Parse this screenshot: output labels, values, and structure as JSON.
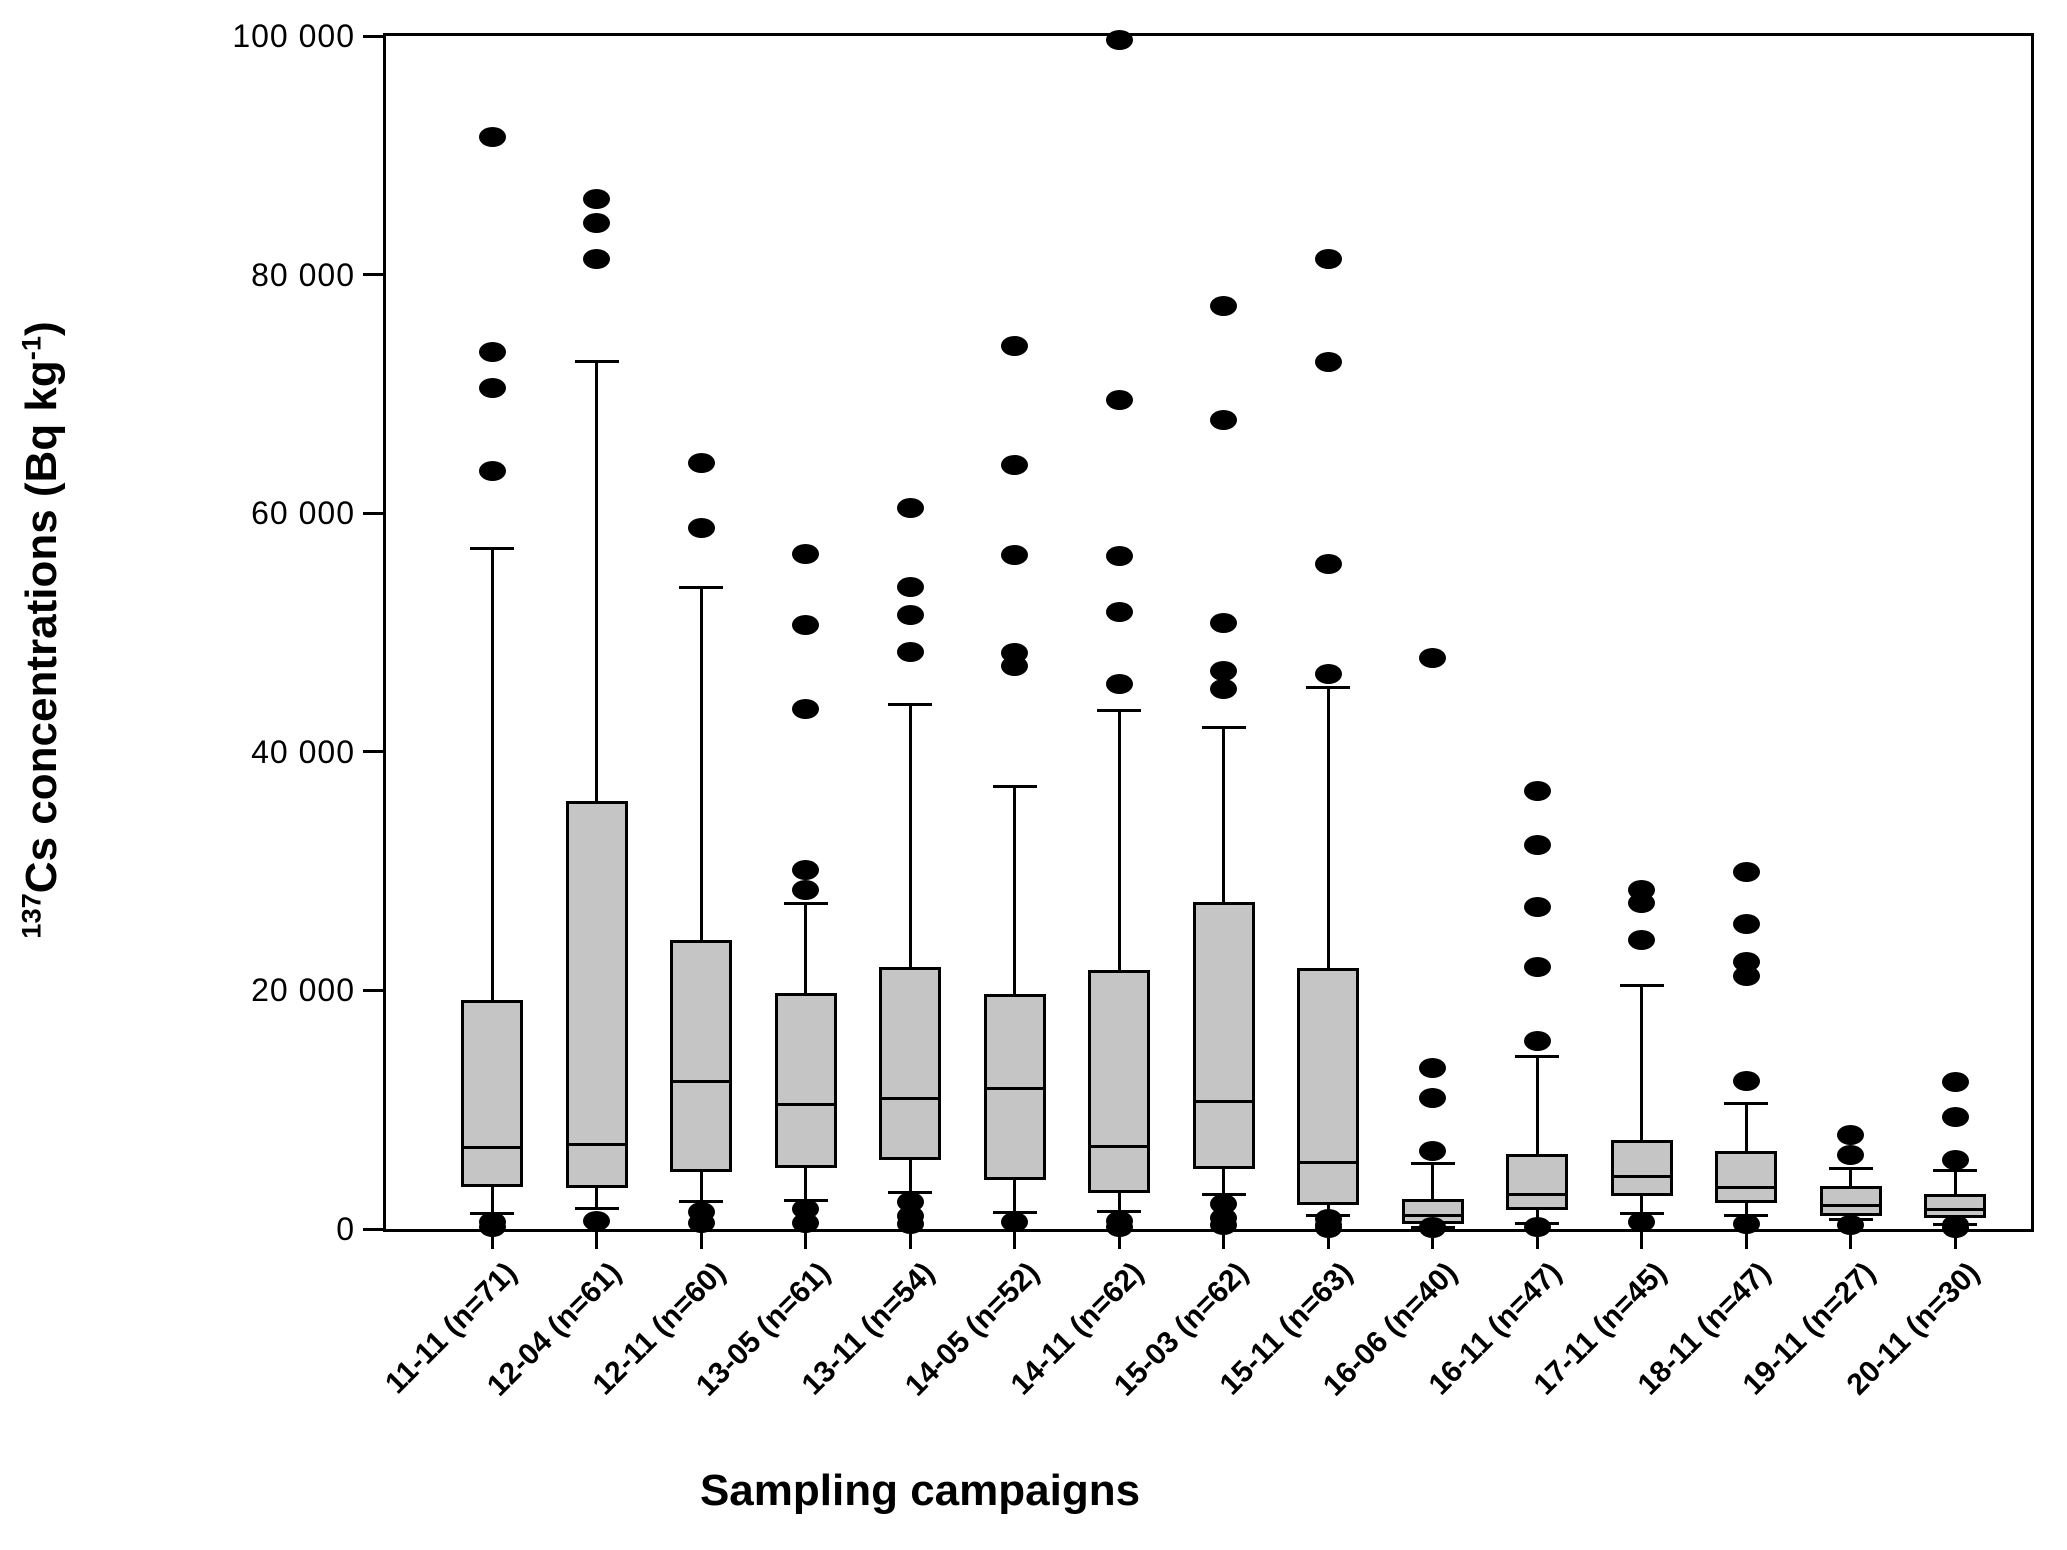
{
  "figure": {
    "background": "#ffffff",
    "frame_color": "#000000"
  },
  "chart_data": {
    "type": "boxplot",
    "title": "",
    "xlabel": "Sampling campaigns",
    "ylabel": "137Cs concentrations (Bq kg-1)",
    "ylabel_rich": {
      "sup_a": "137",
      "text_a": "Cs concentrations (Bq kg",
      "sup_b": "-1",
      "text_b": ")"
    },
    "ylim": [
      0,
      100000
    ],
    "grid": false,
    "legend": null,
    "box_fill": "#c5c5c5",
    "line_color": "#000000",
    "outlier_marker": "filled-circle",
    "yticks": [
      {
        "value": 0,
        "label": "0"
      },
      {
        "value": 20000,
        "label": "20 000"
      },
      {
        "value": 40000,
        "label": "40 000"
      },
      {
        "value": 60000,
        "label": "60 000"
      },
      {
        "value": 80000,
        "label": "80 000"
      },
      {
        "value": 100000,
        "label": "100 000"
      }
    ],
    "categories": [
      "11-11 (n=71)",
      "12-04 (n=61)",
      "12-11 (n=60)",
      "13-05 (n=61)",
      "13-11 (n=54)",
      "14-05 (n=52)",
      "14-11 (n=62)",
      "15-03 (n=62)",
      "15-11 (n=63)",
      "16-06 (n=40)",
      "16-11 (n=47)",
      "17-11 (n=45)",
      "18-11 (n=47)",
      "19-11 (n=27)",
      "20-11 (n=30)"
    ],
    "boxes": [
      {
        "label": "11-11 (n=71)",
        "campaign": "11-11",
        "n": 71,
        "whisker_low": 1300,
        "q1": 3500,
        "median": 6800,
        "q3": 19200,
        "whisker_high": 57000,
        "outliers_high": [
          91500,
          73500,
          70500,
          63500
        ],
        "outliers_low": [
          600,
          200
        ]
      },
      {
        "label": "12-04 (n=61)",
        "campaign": "12-04",
        "n": 61,
        "whisker_low": 1700,
        "q1": 3400,
        "median": 7100,
        "q3": 35900,
        "whisker_high": 72700,
        "outliers_high": [
          86300,
          84300,
          81300
        ],
        "outliers_low": [
          700
        ]
      },
      {
        "label": "12-11 (n=60)",
        "campaign": "12-11",
        "n": 60,
        "whisker_low": 2300,
        "q1": 4800,
        "median": 12400,
        "q3": 24200,
        "whisker_high": 53800,
        "outliers_high": [
          64200,
          58800
        ],
        "outliers_low": [
          1400,
          500
        ]
      },
      {
        "label": "13-05 (n=61)",
        "campaign": "13-05",
        "n": 61,
        "whisker_low": 2400,
        "q1": 5100,
        "median": 10400,
        "q3": 19800,
        "whisker_high": 27300,
        "outliers_high": [
          56600,
          50600,
          43600,
          30100,
          28400
        ],
        "outliers_low": [
          1700,
          500
        ]
      },
      {
        "label": "13-11 (n=54)",
        "campaign": "13-11",
        "n": 54,
        "whisker_low": 3100,
        "q1": 5800,
        "median": 10900,
        "q3": 22000,
        "whisker_high": 44000,
        "outliers_high": [
          60400,
          53800,
          51500,
          48400
        ],
        "outliers_low": [
          2300,
          1100,
          400
        ]
      },
      {
        "label": "14-05 (n=52)",
        "campaign": "14-05",
        "n": 52,
        "whisker_low": 1400,
        "q1": 4100,
        "median": 11800,
        "q3": 19700,
        "whisker_high": 37100,
        "outliers_high": [
          74000,
          64000,
          56500,
          48300,
          47200
        ],
        "outliers_low": [
          600
        ]
      },
      {
        "label": "14-11 (n=62)",
        "campaign": "14-11",
        "n": 62,
        "whisker_low": 1500,
        "q1": 3000,
        "median": 6900,
        "q3": 21700,
        "whisker_high": 43500,
        "outliers_high": [
          99700,
          69500,
          56400,
          51700,
          45700
        ],
        "outliers_low": [
          700,
          200
        ]
      },
      {
        "label": "15-03 (n=62)",
        "campaign": "15-03",
        "n": 62,
        "whisker_low": 2900,
        "q1": 5000,
        "median": 10700,
        "q3": 27400,
        "whisker_high": 42000,
        "outliers_high": [
          77400,
          67800,
          50800,
          46800,
          45300
        ],
        "outliers_low": [
          2100,
          900,
          300
        ]
      },
      {
        "label": "15-11 (n=63)",
        "campaign": "15-11",
        "n": 63,
        "whisker_low": 1100,
        "q1": 2000,
        "median": 5600,
        "q3": 21900,
        "whisker_high": 45400,
        "outliers_high": [
          81300,
          72700,
          55700,
          46500
        ],
        "outliers_low": [
          800,
          300,
          100
        ]
      },
      {
        "label": "16-06 (n=40)",
        "campaign": "16-06",
        "n": 40,
        "whisker_low": 150,
        "q1": 400,
        "median": 1100,
        "q3": 2500,
        "whisker_high": 5500,
        "outliers_high": [
          47900,
          13500,
          11000,
          6500
        ],
        "outliers_low": [
          200,
          50
        ]
      },
      {
        "label": "16-11 (n=47)",
        "campaign": "16-11",
        "n": 47,
        "whisker_low": 500,
        "q1": 1600,
        "median": 2900,
        "q3": 6300,
        "whisker_high": 14500,
        "outliers_high": [
          36700,
          32200,
          27000,
          22000,
          15800
        ],
        "outliers_low": [
          200
        ]
      },
      {
        "label": "17-11 (n=45)",
        "campaign": "17-11",
        "n": 45,
        "whisker_low": 1300,
        "q1": 2800,
        "median": 4400,
        "q3": 7500,
        "whisker_high": 20400,
        "outliers_high": [
          28400,
          27300,
          24200
        ],
        "outliers_low": [
          600
        ]
      },
      {
        "label": "18-11 (n=47)",
        "campaign": "18-11",
        "n": 47,
        "whisker_low": 1100,
        "q1": 2200,
        "median": 3500,
        "q3": 6500,
        "whisker_high": 10500,
        "outliers_high": [
          29900,
          25600,
          22400,
          21200,
          12400
        ],
        "outliers_low": [
          400
        ]
      },
      {
        "label": "19-11 (n=27)",
        "campaign": "19-11",
        "n": 27,
        "whisker_low": 800,
        "q1": 1100,
        "median": 2000,
        "q3": 3600,
        "whisker_high": 5100,
        "outliers_high": [
          7900,
          6200
        ],
        "outliers_low": [
          300
        ]
      },
      {
        "label": "20-11 (n=30)",
        "campaign": "20-11",
        "n": 30,
        "whisker_low": 400,
        "q1": 900,
        "median": 1600,
        "q3": 2900,
        "whisker_high": 4900,
        "outliers_high": [
          12300,
          9400,
          5800
        ],
        "outliers_low": [
          300,
          100
        ]
      }
    ]
  }
}
